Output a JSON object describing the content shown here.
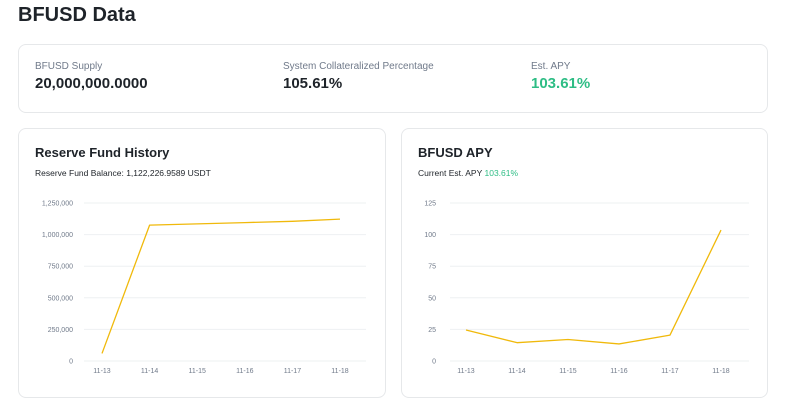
{
  "page": {
    "title": "BFUSD Data"
  },
  "stats": [
    {
      "label": "BFUSD Supply",
      "value": "20,000,000.0000"
    },
    {
      "label": "System Collateralized Percentage",
      "value": "105.61%"
    },
    {
      "label": "Est. APY",
      "value": "103.61%"
    }
  ],
  "reserve": {
    "title": "Reserve Fund History",
    "balance_label": "Reserve Fund Balance:",
    "balance_value": "1,122,226.9589 USDT"
  },
  "apy": {
    "title": "BFUSD APY",
    "current_label": "Current Est. APY",
    "current_value": "103.61%"
  },
  "colors": {
    "line": "#f0b90b",
    "green": "#2ebd85",
    "grid": "#eef0f2"
  },
  "chart_data": [
    {
      "type": "line",
      "title": "Reserve Fund History",
      "categories": [
        "11-13",
        "11-14",
        "11-15",
        "11-16",
        "11-17",
        "11-18"
      ],
      "yticks": [
        "0",
        "250,000",
        "500,000",
        "750,000",
        "1,000,000",
        "1,250,000"
      ],
      "ylim": [
        0,
        1250000
      ],
      "series": [
        {
          "name": "Reserve Fund Balance",
          "values": [
            60000,
            1075000,
            1085000,
            1095000,
            1105000,
            1122227
          ]
        }
      ]
    },
    {
      "type": "line",
      "title": "BFUSD APY",
      "categories": [
        "11-13",
        "11-14",
        "11-15",
        "11-16",
        "11-17",
        "11-18"
      ],
      "yticks": [
        "0",
        "25",
        "50",
        "75",
        "100",
        "125"
      ],
      "ylim": [
        0,
        125
      ],
      "series": [
        {
          "name": "Est. APY",
          "values": [
            24.5,
            14.5,
            17,
            13.5,
            20.5,
            103.61
          ]
        }
      ]
    }
  ]
}
